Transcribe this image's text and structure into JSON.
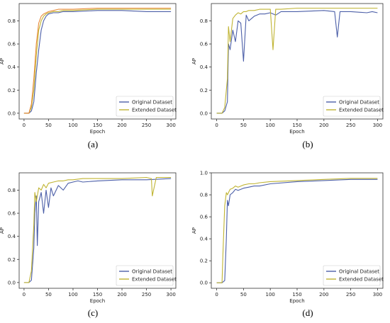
{
  "chart_data": [
    {
      "type": "line",
      "caption": "(a)",
      "xlabel": "Epoch",
      "ylabel": "AP",
      "xlim": [
        -10,
        310
      ],
      "ylim": [
        -0.05,
        0.95
      ],
      "xticks": [
        0,
        50,
        100,
        150,
        200,
        250,
        300
      ],
      "yticks": [
        0.0,
        0.2,
        0.4,
        0.6,
        0.8
      ],
      "legend_position": "lower-right",
      "series": [
        {
          "name": "Original Dataset",
          "color": "#4c5fa8",
          "x": [
            0,
            10,
            15,
            20,
            25,
            30,
            35,
            40,
            45,
            50,
            60,
            70,
            80,
            100,
            150,
            200,
            250,
            300
          ],
          "y": [
            0,
            0,
            0.02,
            0.1,
            0.35,
            0.55,
            0.72,
            0.8,
            0.84,
            0.86,
            0.87,
            0.87,
            0.88,
            0.88,
            0.89,
            0.89,
            0.88,
            0.88
          ]
        },
        {
          "name": "Extended Dataset",
          "color": "#c0b432",
          "x": [
            0,
            10,
            15,
            20,
            25,
            30,
            35,
            40,
            45,
            50,
            60,
            70,
            80,
            100,
            150,
            200,
            250,
            300
          ],
          "y": [
            0,
            0,
            0.05,
            0.2,
            0.5,
            0.72,
            0.8,
            0.84,
            0.86,
            0.87,
            0.88,
            0.88,
            0.89,
            0.89,
            0.9,
            0.9,
            0.9,
            0.9
          ]
        },
        {
          "name": "",
          "color": "#e98b3a",
          "x": [
            0,
            10,
            15,
            20,
            25,
            30,
            35,
            40,
            45,
            50,
            60,
            70,
            80,
            100,
            150,
            200,
            250,
            300
          ],
          "y": [
            0,
            0,
            0.08,
            0.3,
            0.6,
            0.78,
            0.84,
            0.86,
            0.87,
            0.88,
            0.89,
            0.9,
            0.9,
            0.9,
            0.91,
            0.91,
            0.91,
            0.91
          ]
        }
      ]
    },
    {
      "type": "line",
      "caption": "(b)",
      "xlabel": "Epoch",
      "ylabel": "AP",
      "xlim": [
        -10,
        310
      ],
      "ylim": [
        -0.05,
        0.95
      ],
      "xticks": [
        0,
        50,
        100,
        150,
        200,
        250,
        300
      ],
      "yticks": [
        0.0,
        0.2,
        0.4,
        0.6,
        0.8
      ],
      "legend_position": "lower-right",
      "series": [
        {
          "name": "Original Dataset",
          "color": "#4c5fa8",
          "x": [
            0,
            10,
            15,
            20,
            22,
            25,
            30,
            35,
            40,
            45,
            50,
            55,
            60,
            70,
            80,
            90,
            100,
            110,
            120,
            150,
            200,
            220,
            225,
            230,
            250,
            280,
            290,
            300
          ],
          "y": [
            0,
            0,
            0.02,
            0.1,
            0.6,
            0.55,
            0.72,
            0.62,
            0.8,
            0.78,
            0.45,
            0.85,
            0.8,
            0.84,
            0.86,
            0.86,
            0.87,
            0.85,
            0.88,
            0.88,
            0.89,
            0.88,
            0.66,
            0.88,
            0.88,
            0.87,
            0.88,
            0.87
          ]
        },
        {
          "name": "Extended Dataset",
          "color": "#c0b432",
          "x": [
            0,
            10,
            15,
            20,
            22,
            25,
            30,
            35,
            40,
            45,
            50,
            55,
            60,
            70,
            80,
            90,
            100,
            105,
            110,
            120,
            150,
            200,
            250,
            300
          ],
          "y": [
            0,
            0,
            0.05,
            0.3,
            0.75,
            0.62,
            0.82,
            0.85,
            0.87,
            0.86,
            0.88,
            0.88,
            0.89,
            0.89,
            0.9,
            0.9,
            0.9,
            0.55,
            0.9,
            0.9,
            0.91,
            0.91,
            0.91,
            0.91
          ]
        }
      ]
    },
    {
      "type": "line",
      "caption": "(c)",
      "xlabel": "Epoch",
      "ylabel": "AP",
      "xlim": [
        -10,
        310
      ],
      "ylim": [
        -0.05,
        0.95
      ],
      "xticks": [
        0,
        50,
        100,
        150,
        200,
        250,
        300
      ],
      "yticks": [
        0.0,
        0.2,
        0.4,
        0.6,
        0.8
      ],
      "legend_position": "lower-right",
      "series": [
        {
          "name": "Original Dataset",
          "color": "#4c5fa8",
          "x": [
            0,
            10,
            15,
            20,
            22,
            25,
            27,
            30,
            35,
            40,
            45,
            50,
            55,
            60,
            70,
            80,
            90,
            100,
            110,
            120,
            150,
            200,
            250,
            300
          ],
          "y": [
            0,
            0,
            0.02,
            0.3,
            0.6,
            0.75,
            0.32,
            0.7,
            0.78,
            0.6,
            0.8,
            0.65,
            0.82,
            0.75,
            0.84,
            0.8,
            0.86,
            0.87,
            0.88,
            0.87,
            0.88,
            0.89,
            0.89,
            0.9
          ]
        },
        {
          "name": "Extended Dataset",
          "color": "#c0b432",
          "x": [
            0,
            10,
            15,
            20,
            22,
            25,
            30,
            35,
            40,
            45,
            50,
            60,
            70,
            80,
            90,
            100,
            120,
            150,
            200,
            250,
            260,
            262,
            270,
            300
          ],
          "y": [
            0,
            0,
            0.1,
            0.5,
            0.78,
            0.7,
            0.82,
            0.8,
            0.85,
            0.82,
            0.86,
            0.87,
            0.88,
            0.88,
            0.89,
            0.89,
            0.9,
            0.9,
            0.9,
            0.91,
            0.9,
            0.75,
            0.91,
            0.91
          ]
        }
      ]
    },
    {
      "type": "line",
      "caption": "(d)",
      "xlabel": "Epoch",
      "ylabel": "AP",
      "xlim": [
        -10,
        310
      ],
      "ylim": [
        -0.05,
        1.0
      ],
      "xticks": [
        0,
        50,
        100,
        150,
        200,
        250,
        300
      ],
      "yticks": [
        0.0,
        0.2,
        0.4,
        0.6,
        0.8,
        1.0
      ],
      "legend_position": "lower-right",
      "series": [
        {
          "name": "Original Dataset",
          "color": "#4c5fa8",
          "x": [
            0,
            10,
            15,
            18,
            20,
            22,
            25,
            30,
            35,
            40,
            50,
            60,
            70,
            80,
            100,
            150,
            200,
            250,
            300
          ],
          "y": [
            0,
            0,
            0.02,
            0.4,
            0.75,
            0.7,
            0.8,
            0.82,
            0.85,
            0.84,
            0.86,
            0.87,
            0.88,
            0.88,
            0.9,
            0.92,
            0.93,
            0.94,
            0.94
          ]
        },
        {
          "name": "Extended Dataset",
          "color": "#c0b432",
          "x": [
            0,
            10,
            12,
            15,
            18,
            20,
            25,
            30,
            35,
            40,
            50,
            60,
            70,
            80,
            100,
            150,
            200,
            250,
            300
          ],
          "y": [
            0,
            0,
            0.3,
            0.7,
            0.82,
            0.8,
            0.85,
            0.86,
            0.88,
            0.87,
            0.89,
            0.9,
            0.9,
            0.91,
            0.92,
            0.93,
            0.94,
            0.95,
            0.95
          ]
        }
      ]
    }
  ]
}
